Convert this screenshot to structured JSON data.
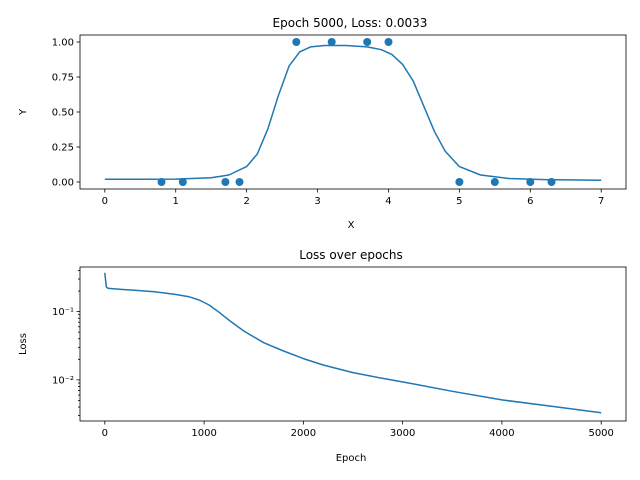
{
  "chart_data": [
    {
      "type": "scatter+line",
      "title": "Epoch 5000, Loss: 0.0033",
      "xlabel": "X",
      "ylabel": "Y",
      "xlim": [
        -0.35,
        7.35
      ],
      "ylim": [
        -0.05,
        1.05
      ],
      "xticks": [
        0,
        1,
        2,
        3,
        4,
        5,
        6,
        7
      ],
      "xtick_labels": [
        "0",
        "1",
        "2",
        "3",
        "4",
        "5",
        "6",
        "7"
      ],
      "yticks": [
        0,
        0.25,
        0.5,
        0.75,
        1
      ],
      "ytick_labels": [
        "0.00",
        "0.25",
        "0.50",
        "0.75",
        "1.00"
      ],
      "grid": false,
      "color": "#1f77b4",
      "points": {
        "x": [
          0.8,
          1.1,
          1.7,
          1.9,
          2.7,
          3.2,
          3.7,
          4.0,
          5.0,
          5.5,
          6.0,
          6.3
        ],
        "y": [
          0,
          0,
          0,
          0,
          1,
          1,
          1,
          1,
          0,
          0,
          0,
          0
        ]
      },
      "curve": {
        "x": [
          0,
          0.5,
          1.0,
          1.5,
          1.75,
          2.0,
          2.15,
          2.3,
          2.45,
          2.6,
          2.75,
          2.9,
          3.1,
          3.4,
          3.7,
          3.9,
          4.05,
          4.2,
          4.35,
          4.5,
          4.65,
          4.8,
          5.0,
          5.3,
          5.7,
          6.2,
          7.0
        ],
        "y": [
          0.02,
          0.02,
          0.021,
          0.03,
          0.05,
          0.11,
          0.2,
          0.38,
          0.62,
          0.83,
          0.93,
          0.965,
          0.975,
          0.975,
          0.965,
          0.945,
          0.91,
          0.84,
          0.72,
          0.54,
          0.36,
          0.22,
          0.11,
          0.05,
          0.025,
          0.017,
          0.013
        ]
      }
    },
    {
      "type": "line",
      "title": "Loss over epochs",
      "xlabel": "Epoch",
      "ylabel": "Loss",
      "yscale": "log",
      "xlim": [
        -250,
        5250
      ],
      "ylim": [
        0.0025,
        0.45
      ],
      "xticks": [
        0,
        1000,
        2000,
        3000,
        4000,
        5000
      ],
      "xtick_labels": [
        "0",
        "1000",
        "2000",
        "3000",
        "4000",
        "5000"
      ],
      "yticks": [
        0.01,
        0.1
      ],
      "ytick_labels": [
        "10⁻²",
        "10⁻¹"
      ],
      "grid": false,
      "color": "#1f77b4",
      "series": [
        {
          "name": "loss",
          "x": [
            0,
            15,
            30,
            100,
            300,
            500,
            700,
            850,
            950,
            1050,
            1150,
            1250,
            1400,
            1600,
            1800,
            2000,
            2200,
            2500,
            2800,
            3100,
            3500,
            4000,
            4500,
            5000
          ],
          "y": [
            0.37,
            0.23,
            0.22,
            0.215,
            0.205,
            0.195,
            0.18,
            0.165,
            0.148,
            0.125,
            0.098,
            0.075,
            0.052,
            0.035,
            0.0265,
            0.0205,
            0.0165,
            0.0128,
            0.0105,
            0.0088,
            0.0068,
            0.0051,
            0.0041,
            0.0033
          ]
        }
      ]
    }
  ]
}
